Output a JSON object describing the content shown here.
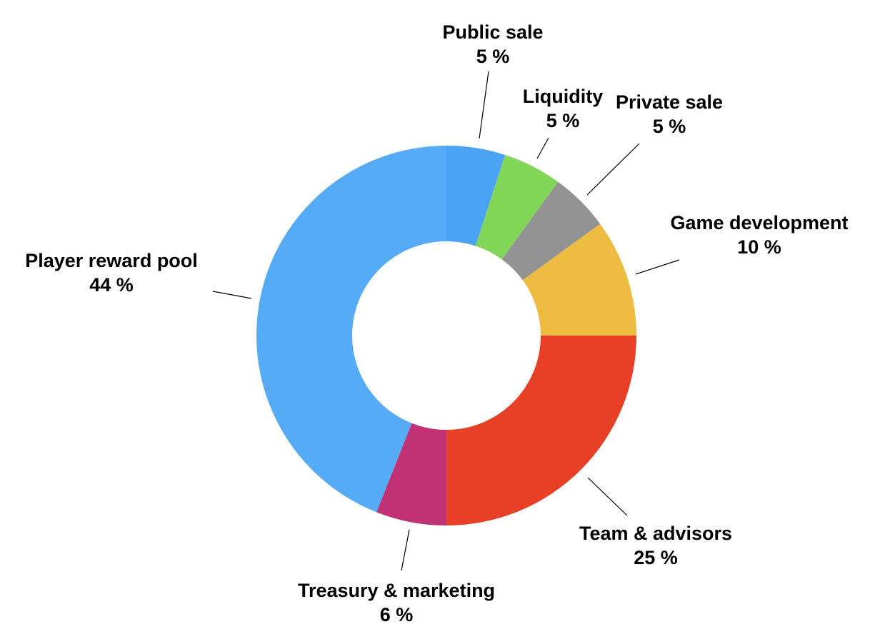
{
  "chart_data": {
    "type": "pie",
    "variant": "donut",
    "title": "",
    "unit": "%",
    "slices": [
      {
        "label": "Public sale",
        "value": 5,
        "color": "#4aa3f5"
      },
      {
        "label": "Liquidity",
        "value": 5,
        "color": "#82d657"
      },
      {
        "label": "Private sale",
        "value": 5,
        "color": "#939393"
      },
      {
        "label": "Game development",
        "value": 10,
        "color": "#eebc41"
      },
      {
        "label": "Team & advisors",
        "value": 25,
        "color": "#e84026"
      },
      {
        "label": "Treasury & marketing",
        "value": 6,
        "color": "#c03275"
      },
      {
        "label": "Player reward pool",
        "value": 44,
        "color": "#55abf6"
      }
    ]
  }
}
